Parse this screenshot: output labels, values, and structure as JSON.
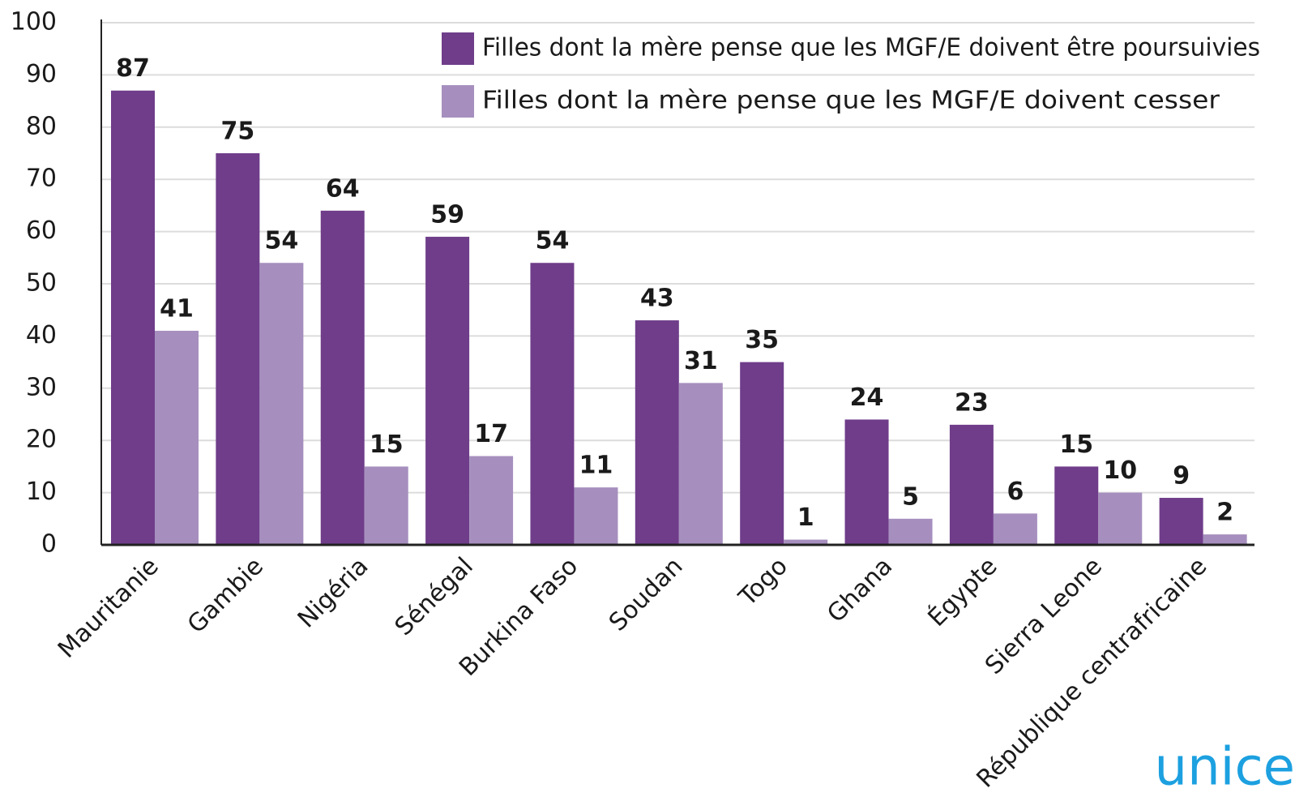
{
  "chart_data": {
    "type": "bar",
    "categories": [
      "Mauritanie",
      "Gambie",
      "Nigéria",
      "Sénégal",
      "Burkina Faso",
      "Soudan",
      "Togo",
      "Ghana",
      "Égypte",
      "Sierra Leone",
      "République centrafricaine"
    ],
    "series": [
      {
        "name": "Filles dont la mère pense que les MGF/E doivent être poursuivies",
        "color": "#6f3d8a",
        "values": [
          87,
          75,
          64,
          59,
          54,
          43,
          35,
          24,
          23,
          15,
          9
        ]
      },
      {
        "name": "Filles dont la mère pense que les MGF/E doivent cesser",
        "color": "#a68fbe",
        "values": [
          41,
          54,
          15,
          17,
          11,
          31,
          1,
          5,
          6,
          10,
          2
        ]
      }
    ],
    "ylim": [
      0,
      100
    ],
    "yticks": [
      0,
      10,
      20,
      30,
      40,
      50,
      60,
      70,
      80,
      90,
      100
    ],
    "grid": true,
    "legend": "top-right",
    "watermark": "unice"
  }
}
